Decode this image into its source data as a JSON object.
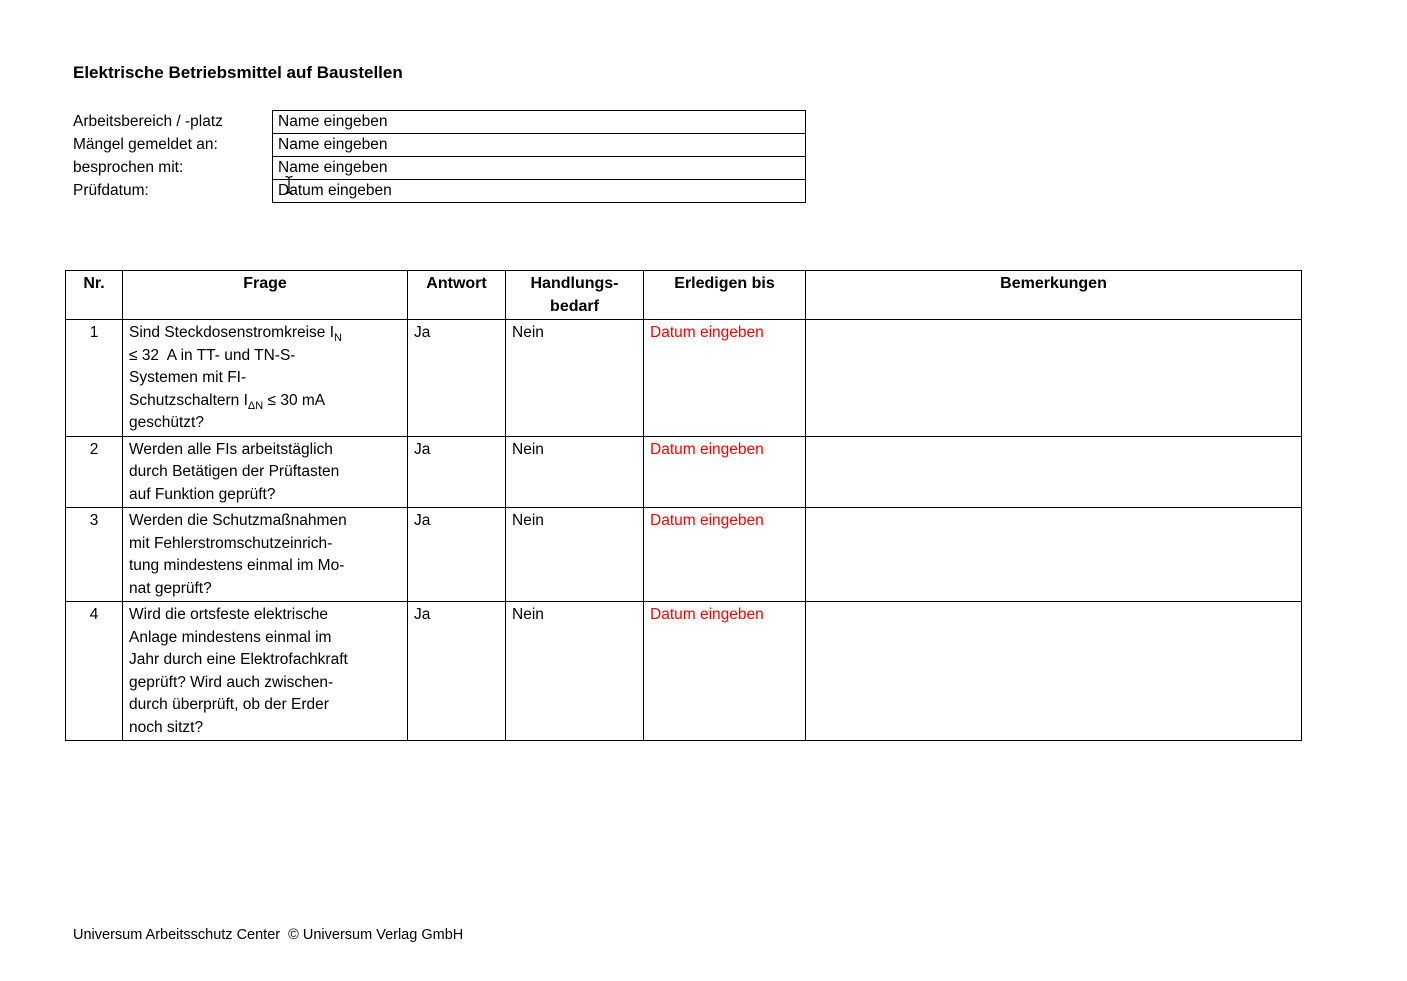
{
  "page": {
    "title": "Elektrische Betriebsmittel auf Baustellen",
    "footer": "Universum Arbeitsschutz Center  © Universum Verlag GmbH"
  },
  "colors": {
    "text": "#000000",
    "due_date_text": "#ff0000",
    "border": "#000000",
    "background": "#ffffff"
  },
  "cursor": {
    "type": "text-i-beam",
    "over_field": "Prüfdatum"
  },
  "form": {
    "fields": [
      {
        "label": "Arbeitsbereich / -platz",
        "value": "Name eingeben"
      },
      {
        "label": "Mängel gemeldet an:",
        "value": "Name eingeben"
      },
      {
        "label": "besprochen mit:",
        "value": "Name eingeben"
      },
      {
        "label": "Prüfdatum:",
        "value": "Datum eingeben"
      }
    ]
  },
  "table": {
    "headers": [
      "Nr.",
      "Frage",
      "Antwort",
      "Handlungs-\nbedarf",
      "Erledigen bis",
      "Bemerkungen"
    ],
    "rows": [
      {
        "nr": "1",
        "frage": "Sind Steckdosenstromkreise I_{N}\n≤ 32  A in TT- und TN-S-\nSystemen mit FI-\nSchutzschaltern I_{ΔN} ≤ 30 mA\ngeschützt?",
        "antwort": "Ja",
        "handlungsbedarf": "Nein",
        "erledigen_bis": "Datum eingeben",
        "bemerkungen": ""
      },
      {
        "nr": "2",
        "frage": "Werden alle FIs arbeitstäglich\ndurch Betätigen der Prüftasten\nauf Funktion geprüft?",
        "antwort": "Ja",
        "handlungsbedarf": "Nein",
        "erledigen_bis": "Datum eingeben",
        "bemerkungen": ""
      },
      {
        "nr": "3",
        "frage": "Werden die Schutzmaßnahmen\nmit Fehlerstromschutzeinrich-\ntung mindestens einmal im Mo-\nnat geprüft?",
        "antwort": "Ja",
        "handlungsbedarf": "Nein",
        "erledigen_bis": "Datum eingeben",
        "bemerkungen": ""
      },
      {
        "nr": "4",
        "frage": "Wird die ortsfeste elektrische\nAnlage mindestens einmal im\nJahr durch eine Elektrofachkraft\ngeprüft? Wird auch zwischen-\ndurch überprüft, ob der Erder\nnoch sitzt?",
        "antwort": "Ja",
        "handlungsbedarf": "Nein",
        "erledigen_bis": "Datum eingeben",
        "bemerkungen": ""
      }
    ]
  }
}
